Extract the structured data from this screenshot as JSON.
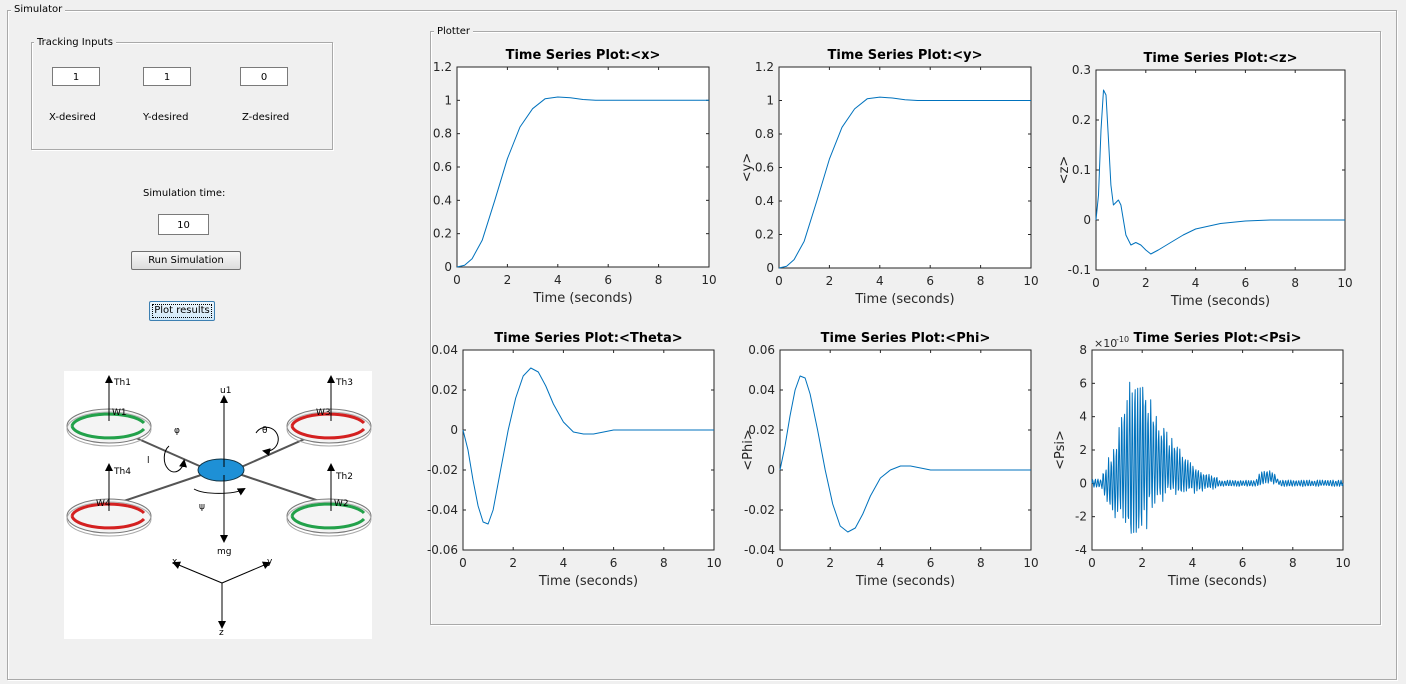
{
  "window": {
    "panel_title": "Simulator"
  },
  "tracking": {
    "title": "Tracking Inputs",
    "x_value": "1",
    "y_value": "1",
    "z_value": "0",
    "x_label": "X-desired",
    "y_label": "Y-desired",
    "z_label": "Z-desired"
  },
  "simulation": {
    "time_label": "Simulation time:",
    "time_value": "10",
    "run_label": "Run Simulation",
    "plot_label": "Plot results"
  },
  "diagram": {
    "labels": [
      "Th1",
      "Th3",
      "Th4",
      "Th2",
      "W1",
      "W3",
      "W4",
      "W2",
      "u1",
      "mg",
      "φ",
      "θ",
      "ψ",
      "l",
      "x",
      "y",
      "z"
    ]
  },
  "plotter": {
    "title": "Plotter"
  },
  "colors": {
    "line": "#0072bd",
    "rotor_green": "#22a14a",
    "rotor_red": "#d42020",
    "body_blue": "#1e90d6"
  },
  "chart_data": [
    {
      "type": "line",
      "title": "Time Series Plot:<x>",
      "xlabel": "Time (seconds)",
      "ylabel": "",
      "xlim": [
        0,
        10
      ],
      "ylim": [
        0,
        1.2
      ],
      "xticks": [
        "0",
        "2",
        "4",
        "6",
        "8",
        "10"
      ],
      "yticks": [
        "0",
        "0.2",
        "0.4",
        "0.6",
        "0.8",
        "1",
        "1.2"
      ],
      "x": [
        0,
        0.3,
        0.6,
        1,
        1.5,
        2,
        2.5,
        3,
        3.5,
        4,
        4.5,
        5,
        5.5,
        6,
        7,
        8,
        10
      ],
      "y": [
        0,
        0.01,
        0.05,
        0.16,
        0.4,
        0.65,
        0.84,
        0.95,
        1.01,
        1.02,
        1.015,
        1.005,
        1.0,
        1.0,
        1.0,
        1.0,
        1.0
      ]
    },
    {
      "type": "line",
      "title": "Time Series Plot:<y>",
      "xlabel": "Time (seconds)",
      "ylabel": "<y>",
      "xlim": [
        0,
        10
      ],
      "ylim": [
        0,
        1.2
      ],
      "xticks": [
        "0",
        "2",
        "4",
        "6",
        "8",
        "10"
      ],
      "yticks": [
        "0",
        "0.2",
        "0.4",
        "0.6",
        "0.8",
        "1",
        "1.2"
      ],
      "x": [
        0,
        0.3,
        0.6,
        1,
        1.5,
        2,
        2.5,
        3,
        3.5,
        4,
        4.5,
        5,
        5.5,
        6,
        7,
        8,
        10
      ],
      "y": [
        0,
        0.01,
        0.05,
        0.16,
        0.4,
        0.65,
        0.84,
        0.95,
        1.01,
        1.02,
        1.015,
        1.005,
        1.0,
        1.0,
        1.0,
        1.0,
        1.0
      ]
    },
    {
      "type": "line",
      "title": "Time Series Plot:<z>",
      "xlabel": "Time (seconds)",
      "ylabel": "<z>",
      "xlim": [
        0,
        10
      ],
      "ylim": [
        -0.1,
        0.3
      ],
      "xticks": [
        "0",
        "2",
        "4",
        "6",
        "8",
        "10"
      ],
      "yticks": [
        "-0.1",
        "0",
        "0.1",
        "0.2",
        "0.3"
      ],
      "x": [
        0,
        0.1,
        0.2,
        0.3,
        0.4,
        0.5,
        0.6,
        0.7,
        0.8,
        0.9,
        1.0,
        1.1,
        1.2,
        1.4,
        1.6,
        1.8,
        2.0,
        2.2,
        2.5,
        3,
        3.5,
        4,
        5,
        6,
        7,
        8,
        10
      ],
      "y": [
        0,
        0.05,
        0.18,
        0.26,
        0.25,
        0.16,
        0.07,
        0.03,
        0.035,
        0.04,
        0.03,
        0.0,
        -0.03,
        -0.05,
        -0.045,
        -0.05,
        -0.06,
        -0.068,
        -0.06,
        -0.045,
        -0.03,
        -0.018,
        -0.007,
        -0.002,
        0,
        0,
        0
      ]
    },
    {
      "type": "line",
      "title": "Time Series Plot:<Theta>",
      "xlabel": "Time (seconds)",
      "ylabel": "",
      "xlim": [
        0,
        10
      ],
      "ylim": [
        -0.06,
        0.04
      ],
      "xticks": [
        "0",
        "2",
        "4",
        "6",
        "8",
        "10"
      ],
      "yticks": [
        "-0.06",
        "-0.04",
        "-0.02",
        "0",
        "0.02",
        "0.04"
      ],
      "x": [
        0,
        0.2,
        0.4,
        0.6,
        0.8,
        1.0,
        1.2,
        1.5,
        1.8,
        2.1,
        2.4,
        2.7,
        3.0,
        3.3,
        3.6,
        4.0,
        4.4,
        4.8,
        5.2,
        5.6,
        6,
        7,
        8,
        10
      ],
      "y": [
        0,
        -0.01,
        -0.025,
        -0.038,
        -0.046,
        -0.047,
        -0.04,
        -0.02,
        0.0,
        0.016,
        0.027,
        0.031,
        0.029,
        0.022,
        0.013,
        0.004,
        -0.001,
        -0.002,
        -0.002,
        -0.001,
        0,
        0,
        0,
        0
      ]
    },
    {
      "type": "line",
      "title": "Time Series Plot:<Phi>",
      "xlabel": "Time (seconds)",
      "ylabel": "<Phi>",
      "xlim": [
        0,
        10
      ],
      "ylim": [
        -0.04,
        0.06
      ],
      "xticks": [
        "0",
        "2",
        "4",
        "6",
        "8",
        "10"
      ],
      "yticks": [
        "-0.04",
        "-0.02",
        "0",
        "0.02",
        "0.04",
        "0.06"
      ],
      "x": [
        0,
        0.2,
        0.4,
        0.6,
        0.8,
        1.0,
        1.2,
        1.5,
        1.8,
        2.1,
        2.4,
        2.7,
        3.0,
        3.3,
        3.6,
        4.0,
        4.4,
        4.8,
        5.2,
        5.6,
        6,
        7,
        8,
        10
      ],
      "y": [
        0,
        0.012,
        0.027,
        0.04,
        0.047,
        0.046,
        0.038,
        0.02,
        0.0,
        -0.017,
        -0.028,
        -0.031,
        -0.029,
        -0.022,
        -0.013,
        -0.004,
        0.0,
        0.002,
        0.002,
        0.001,
        0,
        0,
        0,
        0
      ]
    },
    {
      "type": "line",
      "title": "Time Series Plot:<Psi>",
      "xlabel": "Time (seconds)",
      "ylabel": "<Psi>",
      "scale_label": "×10",
      "scale_exponent": "-10",
      "xlim": [
        0,
        10
      ],
      "ylim": [
        -4,
        8
      ],
      "xticks": [
        "0",
        "2",
        "4",
        "6",
        "8",
        "10"
      ],
      "yticks": [
        "-4",
        "-2",
        "0",
        "2",
        "4",
        "6",
        "8"
      ],
      "noise": "high-frequency oscillation, envelope peaks near 6 at t≈1.8, decays by t≈5, small bump near t≈7"
    }
  ]
}
